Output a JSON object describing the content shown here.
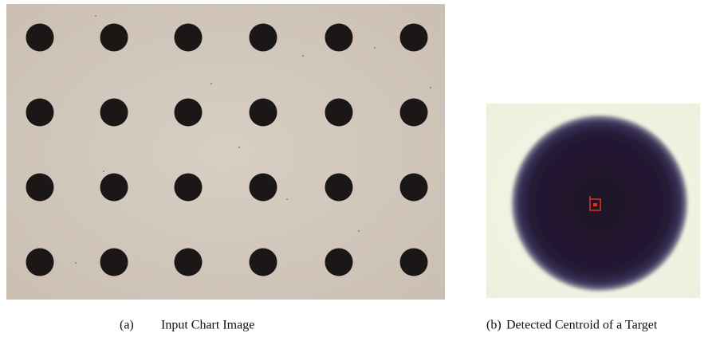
{
  "figure": {
    "panels": [
      {
        "label": "(a)",
        "caption": "Input Chart Image"
      },
      {
        "label": "(b)",
        "caption": "Detected Centroid of a Target"
      }
    ]
  }
}
